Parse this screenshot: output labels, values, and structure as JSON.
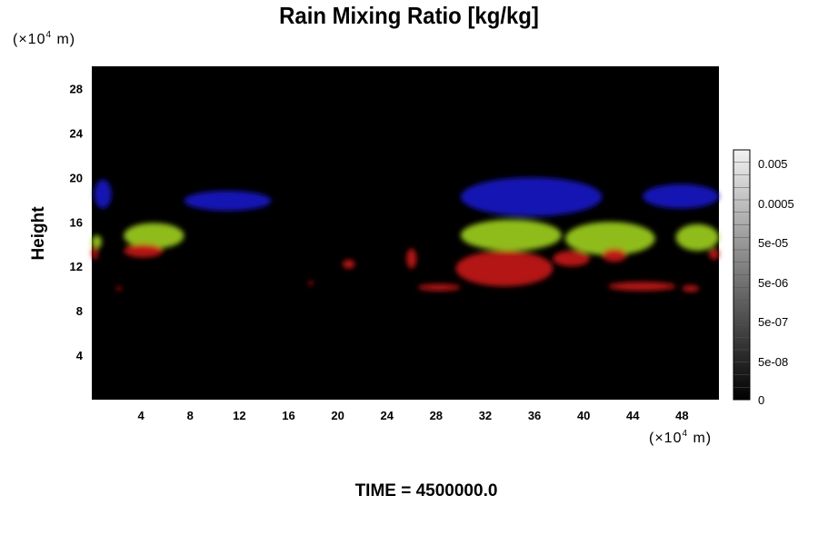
{
  "chart_data": {
    "type": "heatmap",
    "title": "Rain Mixing Ratio [kg/kg]",
    "ylabel": "Height",
    "xunit": "(×10",
    "xunit_exp": "4",
    "xunit_tail": " m)",
    "yunit": "(×10",
    "yunit_exp": "4",
    "yunit_tail": " m)",
    "xlim": [
      0,
      51
    ],
    "ylim": [
      0,
      30
    ],
    "xticks": [
      "4",
      "8",
      "12",
      "16",
      "20",
      "24",
      "28",
      "32",
      "36",
      "40",
      "44",
      "48"
    ],
    "yticks": [
      "4",
      "8",
      "12",
      "16",
      "20",
      "24",
      "28"
    ],
    "colorbar": {
      "labels": [
        "0.005",
        "0.0005",
        "5e-05",
        "5e-06",
        "5e-07",
        "5e-08",
        "0"
      ],
      "min_color": "#000000",
      "max_color": "#f2f2f2"
    },
    "background": "#000000",
    "features": [
      {
        "layer": "blue",
        "color": "#1414c8",
        "x_range": [
          0.2,
          1.6
        ],
        "y_range": [
          17.2,
          19.8
        ],
        "value": "high"
      },
      {
        "layer": "blue",
        "color": "#1414c8",
        "x_range": [
          7.5,
          14.6
        ],
        "y_range": [
          17.0,
          18.8
        ],
        "value": "high"
      },
      {
        "layer": "blue",
        "color": "#1414c8",
        "x_range": [
          30.0,
          41.5
        ],
        "y_range": [
          16.5,
          20.0
        ],
        "value": "high"
      },
      {
        "layer": "blue",
        "color": "#1414c8",
        "x_range": [
          44.8,
          51.0
        ],
        "y_range": [
          17.2,
          19.4
        ],
        "value": "high"
      },
      {
        "layer": "green-yellow",
        "color": "#a0d020",
        "x_range": [
          0,
          0.8
        ],
        "y_range": [
          13.6,
          14.8
        ],
        "value": "high"
      },
      {
        "layer": "green-yellow",
        "color": "#a0d020",
        "x_range": [
          2.6,
          7.5
        ],
        "y_range": [
          13.6,
          15.9
        ],
        "value": "high"
      },
      {
        "layer": "green-yellow",
        "color": "#a0d020",
        "x_range": [
          30.0,
          38.2
        ],
        "y_range": [
          13.4,
          16.2
        ],
        "value": "high"
      },
      {
        "layer": "green-yellow",
        "color": "#a0d020",
        "x_range": [
          38.5,
          45.8
        ],
        "y_range": [
          13.0,
          16.0
        ],
        "value": "high"
      },
      {
        "layer": "green-yellow",
        "color": "#a0d020",
        "x_range": [
          47.5,
          51.0
        ],
        "y_range": [
          13.4,
          15.8
        ],
        "value": "high"
      },
      {
        "layer": "red",
        "color": "#c81414",
        "x_range": [
          0,
          0.5
        ],
        "y_range": [
          12.6,
          13.8
        ],
        "value": "high"
      },
      {
        "layer": "red",
        "color": "#c81414",
        "x_range": [
          2.6,
          5.8
        ],
        "y_range": [
          12.8,
          14.0
        ],
        "value": "high"
      },
      {
        "layer": "red",
        "color": "#c81414",
        "x_range": [
          2.0,
          2.4
        ],
        "y_range": [
          9.8,
          10.2
        ],
        "value": "high"
      },
      {
        "layer": "red",
        "color": "#c81414",
        "x_range": [
          17.6,
          18.0
        ],
        "y_range": [
          10.3,
          10.7
        ],
        "value": "high"
      },
      {
        "layer": "red",
        "color": "#c81414",
        "x_range": [
          20.4,
          21.4
        ],
        "y_range": [
          11.8,
          12.6
        ],
        "value": "high"
      },
      {
        "layer": "red",
        "color": "#c81414",
        "x_range": [
          25.6,
          26.4
        ],
        "y_range": [
          11.8,
          13.6
        ],
        "value": "high"
      },
      {
        "layer": "red",
        "color": "#c81414",
        "x_range": [
          26.5,
          30.0
        ],
        "y_range": [
          9.8,
          10.4
        ],
        "value": "high"
      },
      {
        "layer": "red",
        "color": "#c81414",
        "x_range": [
          29.6,
          37.5
        ],
        "y_range": [
          10.2,
          13.4
        ],
        "value": "high"
      },
      {
        "layer": "red",
        "color": "#c81414",
        "x_range": [
          37.5,
          40.5
        ],
        "y_range": [
          12.0,
          13.4
        ],
        "value": "high"
      },
      {
        "layer": "red",
        "color": "#c81414",
        "x_range": [
          41.5,
          43.5
        ],
        "y_range": [
          12.4,
          13.6
        ],
        "value": "high"
      },
      {
        "layer": "red",
        "color": "#c81414",
        "x_range": [
          42.0,
          47.5
        ],
        "y_range": [
          9.8,
          10.6
        ],
        "value": "high"
      },
      {
        "layer": "red",
        "color": "#c81414",
        "x_range": [
          48.0,
          49.4
        ],
        "y_range": [
          9.7,
          10.3
        ],
        "value": "high"
      },
      {
        "layer": "red",
        "color": "#c81414",
        "x_range": [
          50.2,
          51.0
        ],
        "y_range": [
          12.6,
          13.6
        ],
        "value": "high"
      }
    ]
  },
  "footer": {
    "time_label": "TIME = 4500000.0"
  }
}
